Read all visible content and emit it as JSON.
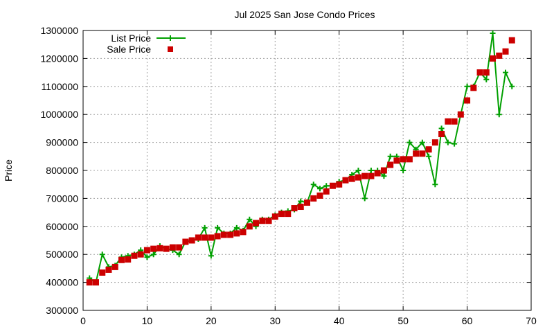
{
  "chart_data": {
    "type": "line",
    "title": "Jul 2025 San Jose Condo Prices",
    "xlabel": "",
    "ylabel": "Price",
    "xlim": [
      0,
      70
    ],
    "ylim": [
      300000,
      1300000
    ],
    "xticks": [
      0,
      10,
      20,
      30,
      40,
      50,
      60,
      70
    ],
    "yticks": [
      300000,
      400000,
      500000,
      600000,
      700000,
      800000,
      900000,
      1000000,
      1100000,
      1200000,
      1300000
    ],
    "grid": true,
    "legend_position": "top-left",
    "series": [
      {
        "name": "List Price",
        "style": "linespoints",
        "marker": "plus",
        "color": "#00a000",
        "x": [
          1,
          2,
          3,
          4,
          5,
          6,
          7,
          8,
          9,
          10,
          11,
          12,
          13,
          14,
          15,
          16,
          17,
          18,
          19,
          20,
          21,
          22,
          23,
          24,
          25,
          26,
          27,
          28,
          29,
          30,
          31,
          32,
          33,
          34,
          35,
          36,
          37,
          38,
          39,
          40,
          41,
          42,
          43,
          44,
          45,
          46,
          47,
          48,
          49,
          50,
          51,
          52,
          53,
          54,
          55,
          56,
          57,
          58,
          59,
          60,
          61,
          62,
          63,
          64,
          65,
          66,
          67
        ],
        "values": [
          415000,
          400000,
          500000,
          455000,
          460000,
          490000,
          495000,
          500000,
          515000,
          490000,
          500000,
          530000,
          520000,
          515000,
          500000,
          545000,
          550000,
          555000,
          595000,
          495000,
          595000,
          575000,
          575000,
          595000,
          585000,
          625000,
          600000,
          625000,
          625000,
          640000,
          650000,
          655000,
          660000,
          690000,
          685000,
          750000,
          735000,
          745000,
          745000,
          760000,
          765000,
          785000,
          800000,
          700000,
          800000,
          800000,
          780000,
          850000,
          850000,
          800000,
          900000,
          875000,
          900000,
          850000,
          750000,
          950000,
          900000,
          895000,
          1000000,
          1100000,
          1100000,
          1150000,
          1125000,
          1290000,
          1000000,
          1150000,
          1100000
        ]
      },
      {
        "name": "Sale Price",
        "style": "points",
        "marker": "square",
        "color": "#cc0000",
        "x": [
          1,
          2,
          3,
          4,
          5,
          6,
          7,
          8,
          9,
          10,
          11,
          12,
          13,
          14,
          15,
          16,
          17,
          18,
          19,
          20,
          21,
          22,
          23,
          24,
          25,
          26,
          27,
          28,
          29,
          30,
          31,
          32,
          33,
          34,
          35,
          36,
          37,
          38,
          39,
          40,
          41,
          42,
          43,
          44,
          45,
          46,
          47,
          48,
          49,
          50,
          51,
          52,
          53,
          54,
          55,
          56,
          57,
          58,
          59,
          60,
          61,
          62,
          63,
          64,
          65,
          66,
          67
        ],
        "values": [
          400000,
          400000,
          435000,
          445000,
          455000,
          480000,
          482000,
          495000,
          500000,
          515000,
          520000,
          522000,
          520000,
          525000,
          525000,
          545000,
          550000,
          560000,
          560000,
          560000,
          565000,
          570000,
          570000,
          575000,
          580000,
          600000,
          612000,
          620000,
          620000,
          635000,
          645000,
          645000,
          665000,
          670000,
          685000,
          700000,
          710000,
          725000,
          745000,
          750000,
          765000,
          770000,
          775000,
          780000,
          780000,
          790000,
          800000,
          820000,
          835000,
          840000,
          840000,
          860000,
          860000,
          875000,
          900000,
          930000,
          975000,
          975000,
          1000000,
          1050000,
          1095000,
          1150000,
          1150000,
          1200000,
          1210000,
          1225000,
          1265000
        ]
      }
    ]
  }
}
